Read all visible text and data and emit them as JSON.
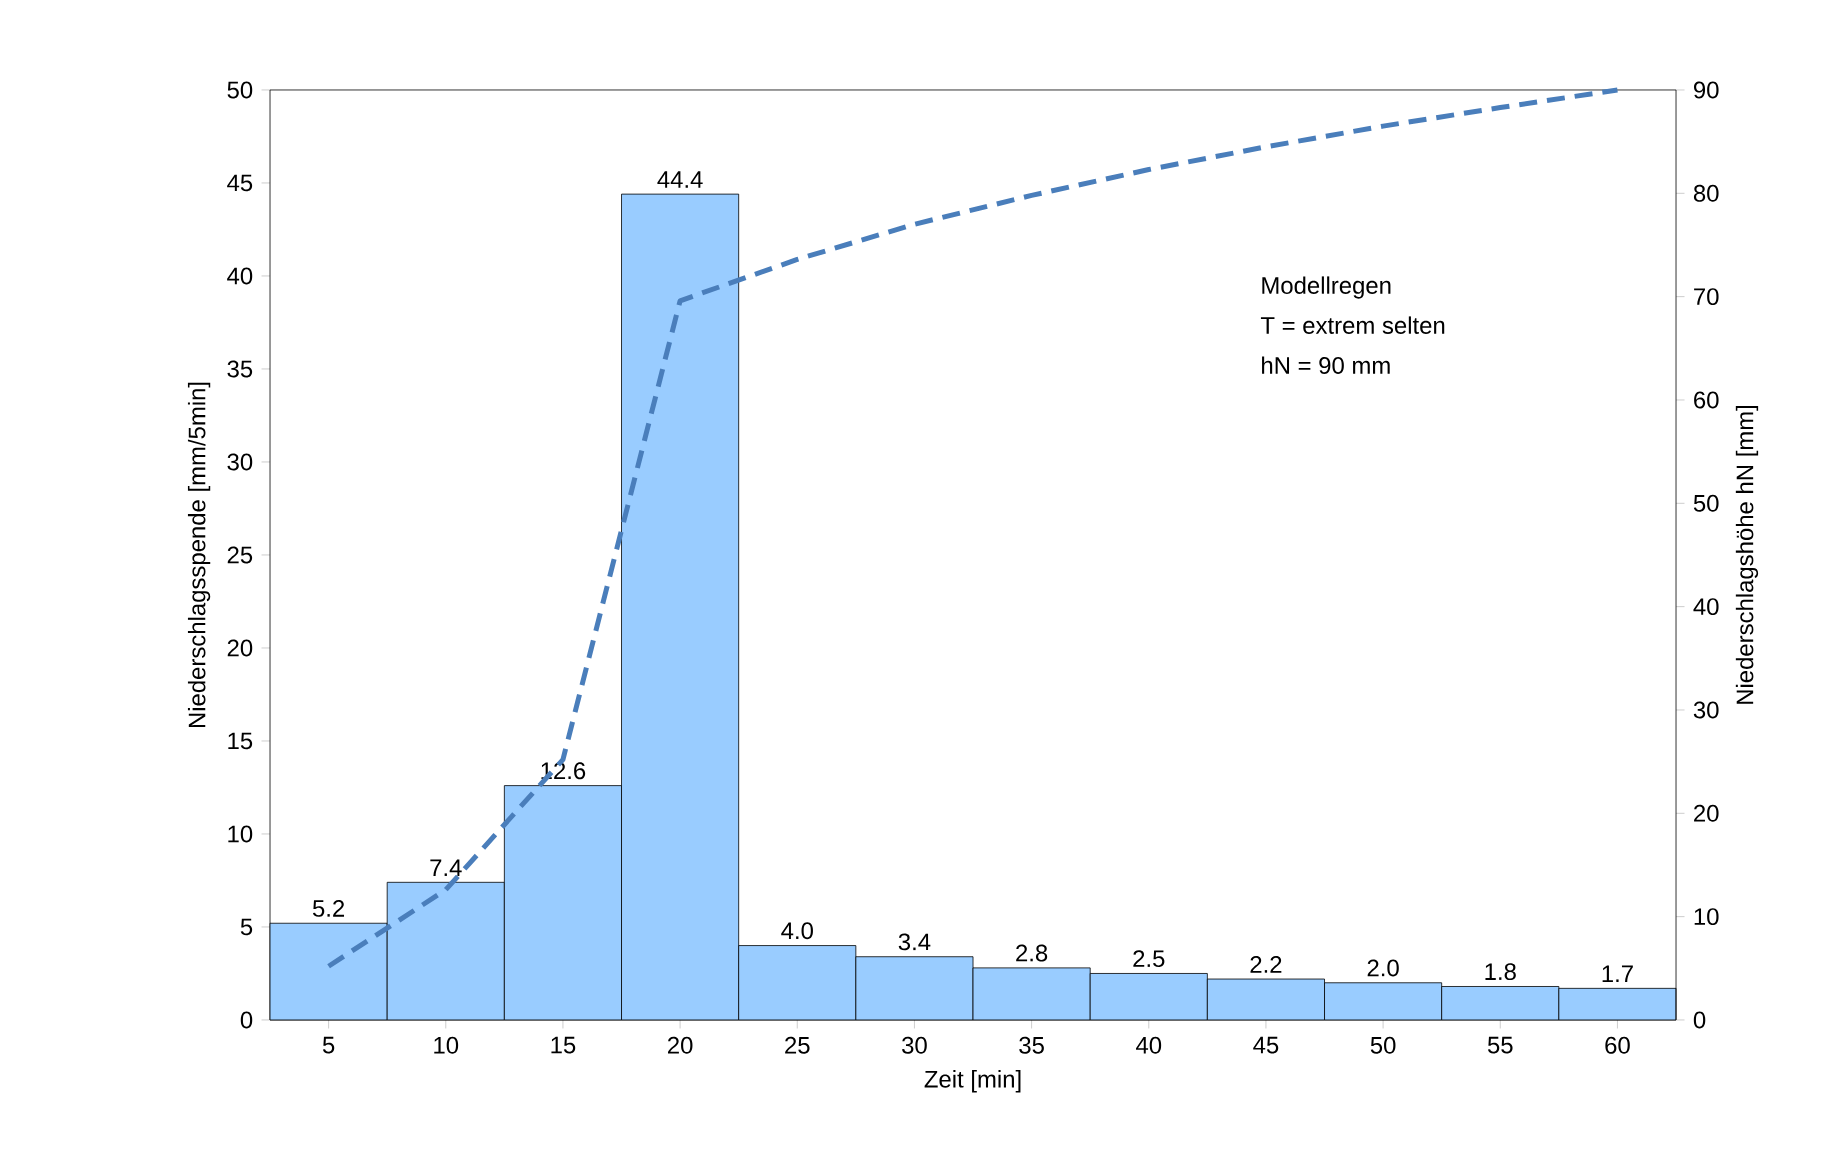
{
  "chart_data": {
    "type": "bar",
    "xlabel": "Zeit [min]",
    "ylabel": "Niederschlagsspende  [mm/5min]",
    "y2label": "Niederschlagshöhe  hN [mm]",
    "categories": [
      "5",
      "10",
      "15",
      "20",
      "25",
      "30",
      "35",
      "40",
      "45",
      "50",
      "55",
      "60"
    ],
    "series": [
      {
        "color": "#99ccff",
        "values": [
          5.2,
          7.4,
          12.6,
          44.4,
          4.0,
          3.4,
          2.8,
          2.5,
          2.2,
          2.0,
          1.8,
          1.7
        ],
        "value_labels": [
          "5.2",
          "7.4",
          "12.6",
          "44.4",
          "4.0",
          "3.4",
          "2.8",
          "2.5",
          "2.2",
          "2.0",
          "1.8",
          "1.7"
        ]
      },
      {
        "type": "line",
        "axis": "y2",
        "color": "#4a7ebb",
        "line_style": "dashed",
        "values": [
          5.2,
          12.6,
          25.2,
          69.6,
          73.6,
          77.0,
          79.8,
          82.3,
          84.5,
          86.5,
          88.3,
          90.0
        ]
      }
    ],
    "ylim": [
      0,
      50
    ],
    "yticks": [
      0,
      5,
      10,
      15,
      20,
      25,
      30,
      35,
      40,
      45,
      50
    ],
    "y2lim": [
      0,
      90
    ],
    "y2ticks": [
      0,
      10,
      20,
      30,
      40,
      50,
      60,
      70,
      80,
      90
    ],
    "annotations": [
      "Modellregen",
      "T = extrem selten",
      "hN = 90 mm"
    ]
  }
}
